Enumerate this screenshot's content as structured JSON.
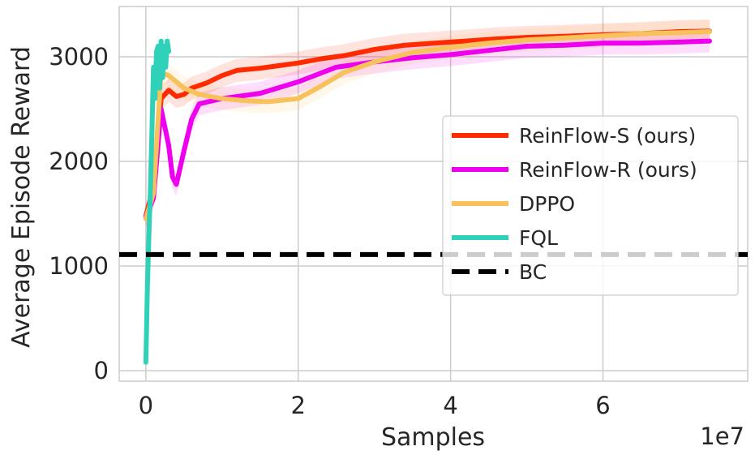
{
  "chart_data": {
    "type": "line",
    "xlabel": "Samples",
    "ylabel": "Average Episode Reward",
    "x_offset_label": "1e7",
    "x_scale": 10000000,
    "xlim": [
      -0.35,
      7.9
    ],
    "ylim": [
      -100,
      3480
    ],
    "x_ticks": [
      0,
      2,
      4,
      6
    ],
    "y_ticks": [
      0,
      1000,
      2000,
      3000
    ],
    "grid": true,
    "legend_position": "center-right",
    "series": [
      {
        "name": "ReinFlow-S (ours)",
        "color": "#ff2a00",
        "x": [
          0,
          0.1,
          0.2,
          0.3,
          0.4,
          0.5,
          0.6,
          0.8,
          1.0,
          1.2,
          1.5,
          1.8,
          2.0,
          2.3,
          2.6,
          3.0,
          3.4,
          3.8,
          4.2,
          4.6,
          5.0,
          5.5,
          6.0,
          6.5,
          7.0,
          7.4
        ],
        "y": [
          1480,
          1750,
          2600,
          2680,
          2620,
          2640,
          2700,
          2750,
          2820,
          2870,
          2890,
          2920,
          2940,
          2980,
          3010,
          3070,
          3110,
          3130,
          3150,
          3170,
          3185,
          3195,
          3210,
          3220,
          3240,
          3245
        ]
      },
      {
        "name": "ReinFlow-R (ours)",
        "color": "#ee00ee",
        "x": [
          0,
          0.1,
          0.2,
          0.3,
          0.35,
          0.4,
          0.5,
          0.6,
          0.7,
          1.0,
          1.5,
          2.0,
          2.5,
          3.0,
          3.5,
          4.0,
          4.5,
          5.0,
          5.5,
          6.0,
          6.5,
          7.0,
          7.4
        ],
        "y": [
          1470,
          1650,
          2500,
          2150,
          1850,
          1780,
          2100,
          2400,
          2550,
          2600,
          2650,
          2760,
          2900,
          2950,
          2990,
          3020,
          3060,
          3100,
          3110,
          3130,
          3130,
          3140,
          3150
        ]
      },
      {
        "name": "DPPO",
        "color": "#f7c25b",
        "x": [
          0,
          0.1,
          0.2,
          0.3,
          0.4,
          0.5,
          0.7,
          1.0,
          1.3,
          1.6,
          2.0,
          2.3,
          2.6,
          3.0,
          3.5,
          4.0,
          4.5,
          5.0,
          5.5,
          6.0,
          6.5,
          7.0,
          7.4
        ],
        "y": [
          1450,
          1700,
          2850,
          2820,
          2760,
          2700,
          2640,
          2600,
          2580,
          2570,
          2600,
          2720,
          2850,
          2950,
          3040,
          3090,
          3130,
          3160,
          3180,
          3200,
          3220,
          3230,
          3240
        ]
      },
      {
        "name": "FQL",
        "color": "#2fd1b9",
        "x": [
          0,
          0.02,
          0.04,
          0.06,
          0.08,
          0.1,
          0.12,
          0.14,
          0.16,
          0.18,
          0.2,
          0.22,
          0.24,
          0.26,
          0.28,
          0.3
        ],
        "y": [
          80,
          800,
          1300,
          1750,
          2300,
          2900,
          2600,
          3050,
          3100,
          2700,
          3150,
          2800,
          3100,
          2900,
          3150,
          3050
        ]
      },
      {
        "name": "BC",
        "color": "#000000",
        "dashed": true,
        "constant": 1110
      }
    ]
  }
}
